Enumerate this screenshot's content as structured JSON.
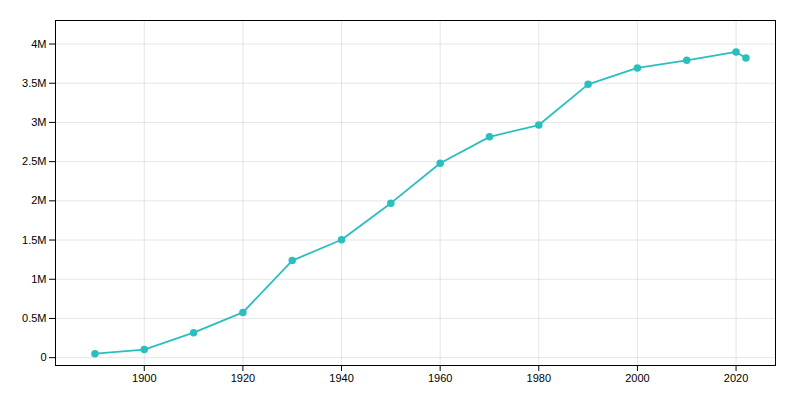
{
  "chart_data": {
    "type": "line",
    "x": [
      1890,
      1900,
      1910,
      1920,
      1930,
      1940,
      1950,
      1960,
      1970,
      1980,
      1990,
      2000,
      2010,
      2020,
      2022
    ],
    "values": [
      50395,
      102479,
      319198,
      576673,
      1238048,
      1504277,
      1970358,
      2479015,
      2816061,
      2966850,
      3485398,
      3694820,
      3792621,
      3898747,
      3822238
    ],
    "color": "#2abfbf",
    "marker": "circle",
    "xlim": [
      1882,
      2028
    ],
    "xticks": [
      1900,
      1920,
      1940,
      1960,
      1980,
      2000,
      2020
    ],
    "ylim": [
      -100000,
      4300000
    ],
    "yticks": [
      0,
      {
        "value": 500000,
        "label": "0.5M"
      },
      {
        "value": 1000000,
        "label": "1M"
      },
      {
        "value": 1500000,
        "label": "1.5M"
      },
      {
        "value": 2000000,
        "label": "2M"
      },
      {
        "value": 2500000,
        "label": "2.5M"
      },
      {
        "value": 3000000,
        "label": "3M"
      },
      {
        "value": 3500000,
        "label": "3.5M"
      },
      {
        "value": 4000000,
        "label": "4M"
      }
    ],
    "grid": true
  }
}
